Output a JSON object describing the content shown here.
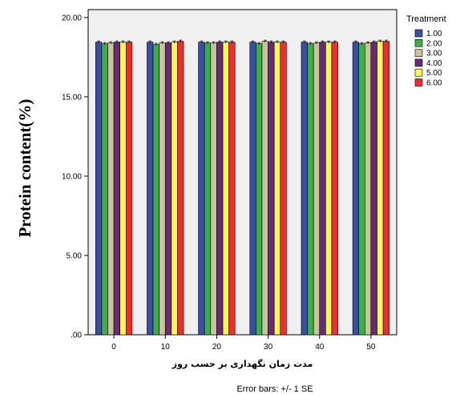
{
  "chart_data": {
    "type": "bar",
    "categories": [
      "0",
      "10",
      "20",
      "30",
      "40",
      "50"
    ],
    "series": [
      {
        "name": "1.00",
        "color": "#3a4f9f",
        "values": [
          18.45,
          18.45,
          18.45,
          18.45,
          18.45,
          18.45
        ]
      },
      {
        "name": "2.00",
        "color": "#3cae48",
        "values": [
          18.35,
          18.3,
          18.4,
          18.35,
          18.35,
          18.35
        ]
      },
      {
        "name": "3.00",
        "color": "#c9c49a",
        "values": [
          18.4,
          18.4,
          18.4,
          18.5,
          18.4,
          18.4
        ]
      },
      {
        "name": "4.00",
        "color": "#6b2a77",
        "values": [
          18.45,
          18.4,
          18.45,
          18.45,
          18.45,
          18.45
        ]
      },
      {
        "name": "5.00",
        "color": "#f6f65a",
        "values": [
          18.45,
          18.45,
          18.45,
          18.45,
          18.45,
          18.5
        ]
      },
      {
        "name": "6.00",
        "color": "#e8302f",
        "values": [
          18.45,
          18.5,
          18.45,
          18.45,
          18.45,
          18.5
        ]
      }
    ],
    "y_ticks": [
      ".00",
      "5.00",
      "10.00",
      "15.00",
      "20.00"
    ],
    "ylim": [
      0,
      20.5
    ],
    "ylabel": "Protein content(%)",
    "xlabel": "مدت زمان نگهداری بر حسب روز",
    "legend_title": "Treatment",
    "legend_position": "right",
    "footnote": "Error bars: +/- 1 SE",
    "plot_background": "#f0f0f0"
  }
}
